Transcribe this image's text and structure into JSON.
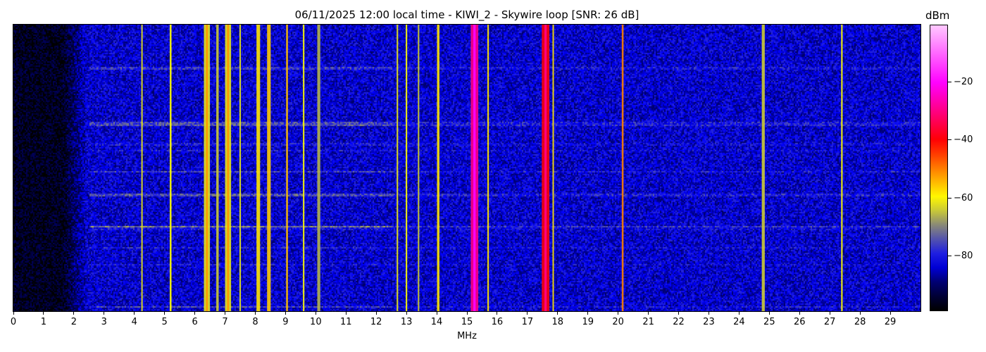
{
  "chart_data": {
    "type": "heatmap",
    "title": "06/11/2025 12:00 local time - KIWI_2 - Skywire loop [SNR: 26 dB]",
    "xlabel": "MHz",
    "xlim": [
      0,
      30
    ],
    "xticks": [
      "0",
      "1",
      "2",
      "3",
      "4",
      "5",
      "6",
      "7",
      "8",
      "9",
      "10",
      "11",
      "12",
      "13",
      "14",
      "15",
      "16",
      "17",
      "18",
      "19",
      "20",
      "21",
      "22",
      "23",
      "24",
      "25",
      "26",
      "27",
      "28",
      "29"
    ],
    "colorbar": {
      "label": "dBm",
      "range": [
        -99,
        0
      ],
      "ticks": [
        -20,
        -40,
        -60,
        -80
      ],
      "tick_labels": [
        "−20",
        "−40",
        "−60",
        "−80"
      ],
      "colormap": [
        "#000000",
        "#000060",
        "#0000ff",
        "#808080",
        "#ffff00",
        "#ff8000",
        "#ff0000",
        "#ff00ff",
        "#ffc8ff"
      ]
    },
    "noise_floor_dbm": {
      "below_2_MHz": -96,
      "above_2_MHz": -84
    },
    "signals": [
      {
        "freq_mhz": 4.25,
        "width_mhz": 0.04,
        "dbm": -62
      },
      {
        "freq_mhz": 5.2,
        "width_mhz": 0.06,
        "dbm": -60
      },
      {
        "freq_mhz": 6.4,
        "width_mhz": 0.2,
        "dbm": -62
      },
      {
        "freq_mhz": 6.75,
        "width_mhz": 0.08,
        "dbm": -64
      },
      {
        "freq_mhz": 7.1,
        "width_mhz": 0.2,
        "dbm": -62
      },
      {
        "freq_mhz": 7.5,
        "width_mhz": 0.05,
        "dbm": -62
      },
      {
        "freq_mhz": 8.1,
        "width_mhz": 0.12,
        "dbm": -58
      },
      {
        "freq_mhz": 8.45,
        "width_mhz": 0.12,
        "dbm": -56
      },
      {
        "freq_mhz": 9.05,
        "width_mhz": 0.06,
        "dbm": -55
      },
      {
        "freq_mhz": 9.6,
        "width_mhz": 0.05,
        "dbm": -60
      },
      {
        "freq_mhz": 10.1,
        "width_mhz": 0.1,
        "dbm": -66
      },
      {
        "freq_mhz": 12.7,
        "width_mhz": 0.05,
        "dbm": -62
      },
      {
        "freq_mhz": 13.0,
        "width_mhz": 0.05,
        "dbm": -60
      },
      {
        "freq_mhz": 13.4,
        "width_mhz": 0.05,
        "dbm": -64
      },
      {
        "freq_mhz": 14.05,
        "width_mhz": 0.08,
        "dbm": -58
      },
      {
        "freq_mhz": 15.25,
        "width_mhz": 0.25,
        "dbm": -30
      },
      {
        "freq_mhz": 15.7,
        "width_mhz": 0.05,
        "dbm": -58
      },
      {
        "freq_mhz": 17.6,
        "width_mhz": 0.25,
        "dbm": -40
      },
      {
        "freq_mhz": 17.85,
        "width_mhz": 0.04,
        "dbm": -58
      },
      {
        "freq_mhz": 20.15,
        "width_mhz": 0.06,
        "dbm": -50
      },
      {
        "freq_mhz": 24.8,
        "width_mhz": 0.1,
        "dbm": -64
      },
      {
        "freq_mhz": 27.4,
        "width_mhz": 0.05,
        "dbm": -60
      }
    ]
  }
}
